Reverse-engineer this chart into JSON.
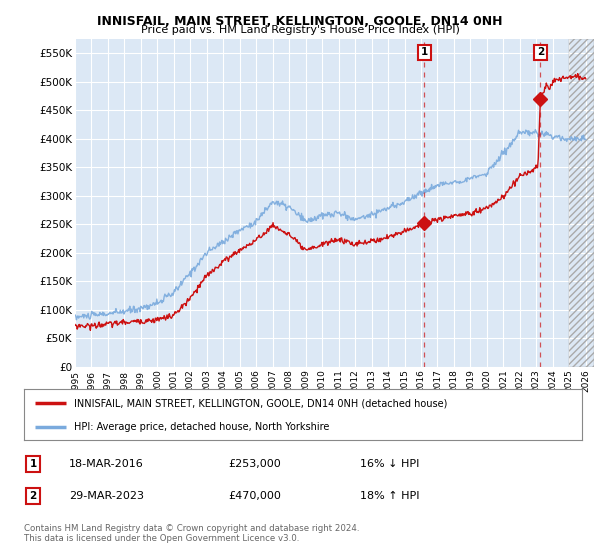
{
  "title": "INNISFAIL, MAIN STREET, KELLINGTON, GOOLE, DN14 0NH",
  "subtitle": "Price paid vs. HM Land Registry's House Price Index (HPI)",
  "ylabel_ticks": [
    "£0",
    "£50K",
    "£100K",
    "£150K",
    "£200K",
    "£250K",
    "£300K",
    "£350K",
    "£400K",
    "£450K",
    "£500K",
    "£550K"
  ],
  "ytick_values": [
    0,
    50000,
    100000,
    150000,
    200000,
    250000,
    300000,
    350000,
    400000,
    450000,
    500000,
    550000
  ],
  "ylim": [
    0,
    575000
  ],
  "xlim_start": 1995.0,
  "xlim_end": 2026.5,
  "background_color": "#ffffff",
  "plot_bg_color": "#dce8f5",
  "grid_color": "#ffffff",
  "hpi_color": "#7aaadd",
  "price_color": "#cc1111",
  "transaction1_x": 2016.21,
  "transaction1_y": 253000,
  "transaction2_x": 2023.24,
  "transaction2_y": 470000,
  "legend_label_red": "INNISFAIL, MAIN STREET, KELLINGTON, GOOLE, DN14 0NH (detached house)",
  "legend_label_blue": "HPI: Average price, detached house, North Yorkshire",
  "table_row1": [
    "1",
    "18-MAR-2016",
    "£253,000",
    "16% ↓ HPI"
  ],
  "table_row2": [
    "2",
    "29-MAR-2023",
    "£470,000",
    "18% ↑ HPI"
  ],
  "footer": "Contains HM Land Registry data © Crown copyright and database right 2024.\nThis data is licensed under the Open Government Licence v3.0.",
  "x_tick_years": [
    1995,
    1996,
    1997,
    1998,
    1999,
    2000,
    2001,
    2002,
    2003,
    2004,
    2005,
    2006,
    2007,
    2008,
    2009,
    2010,
    2011,
    2012,
    2013,
    2014,
    2015,
    2016,
    2017,
    2018,
    2019,
    2020,
    2021,
    2022,
    2023,
    2024,
    2025,
    2026
  ]
}
